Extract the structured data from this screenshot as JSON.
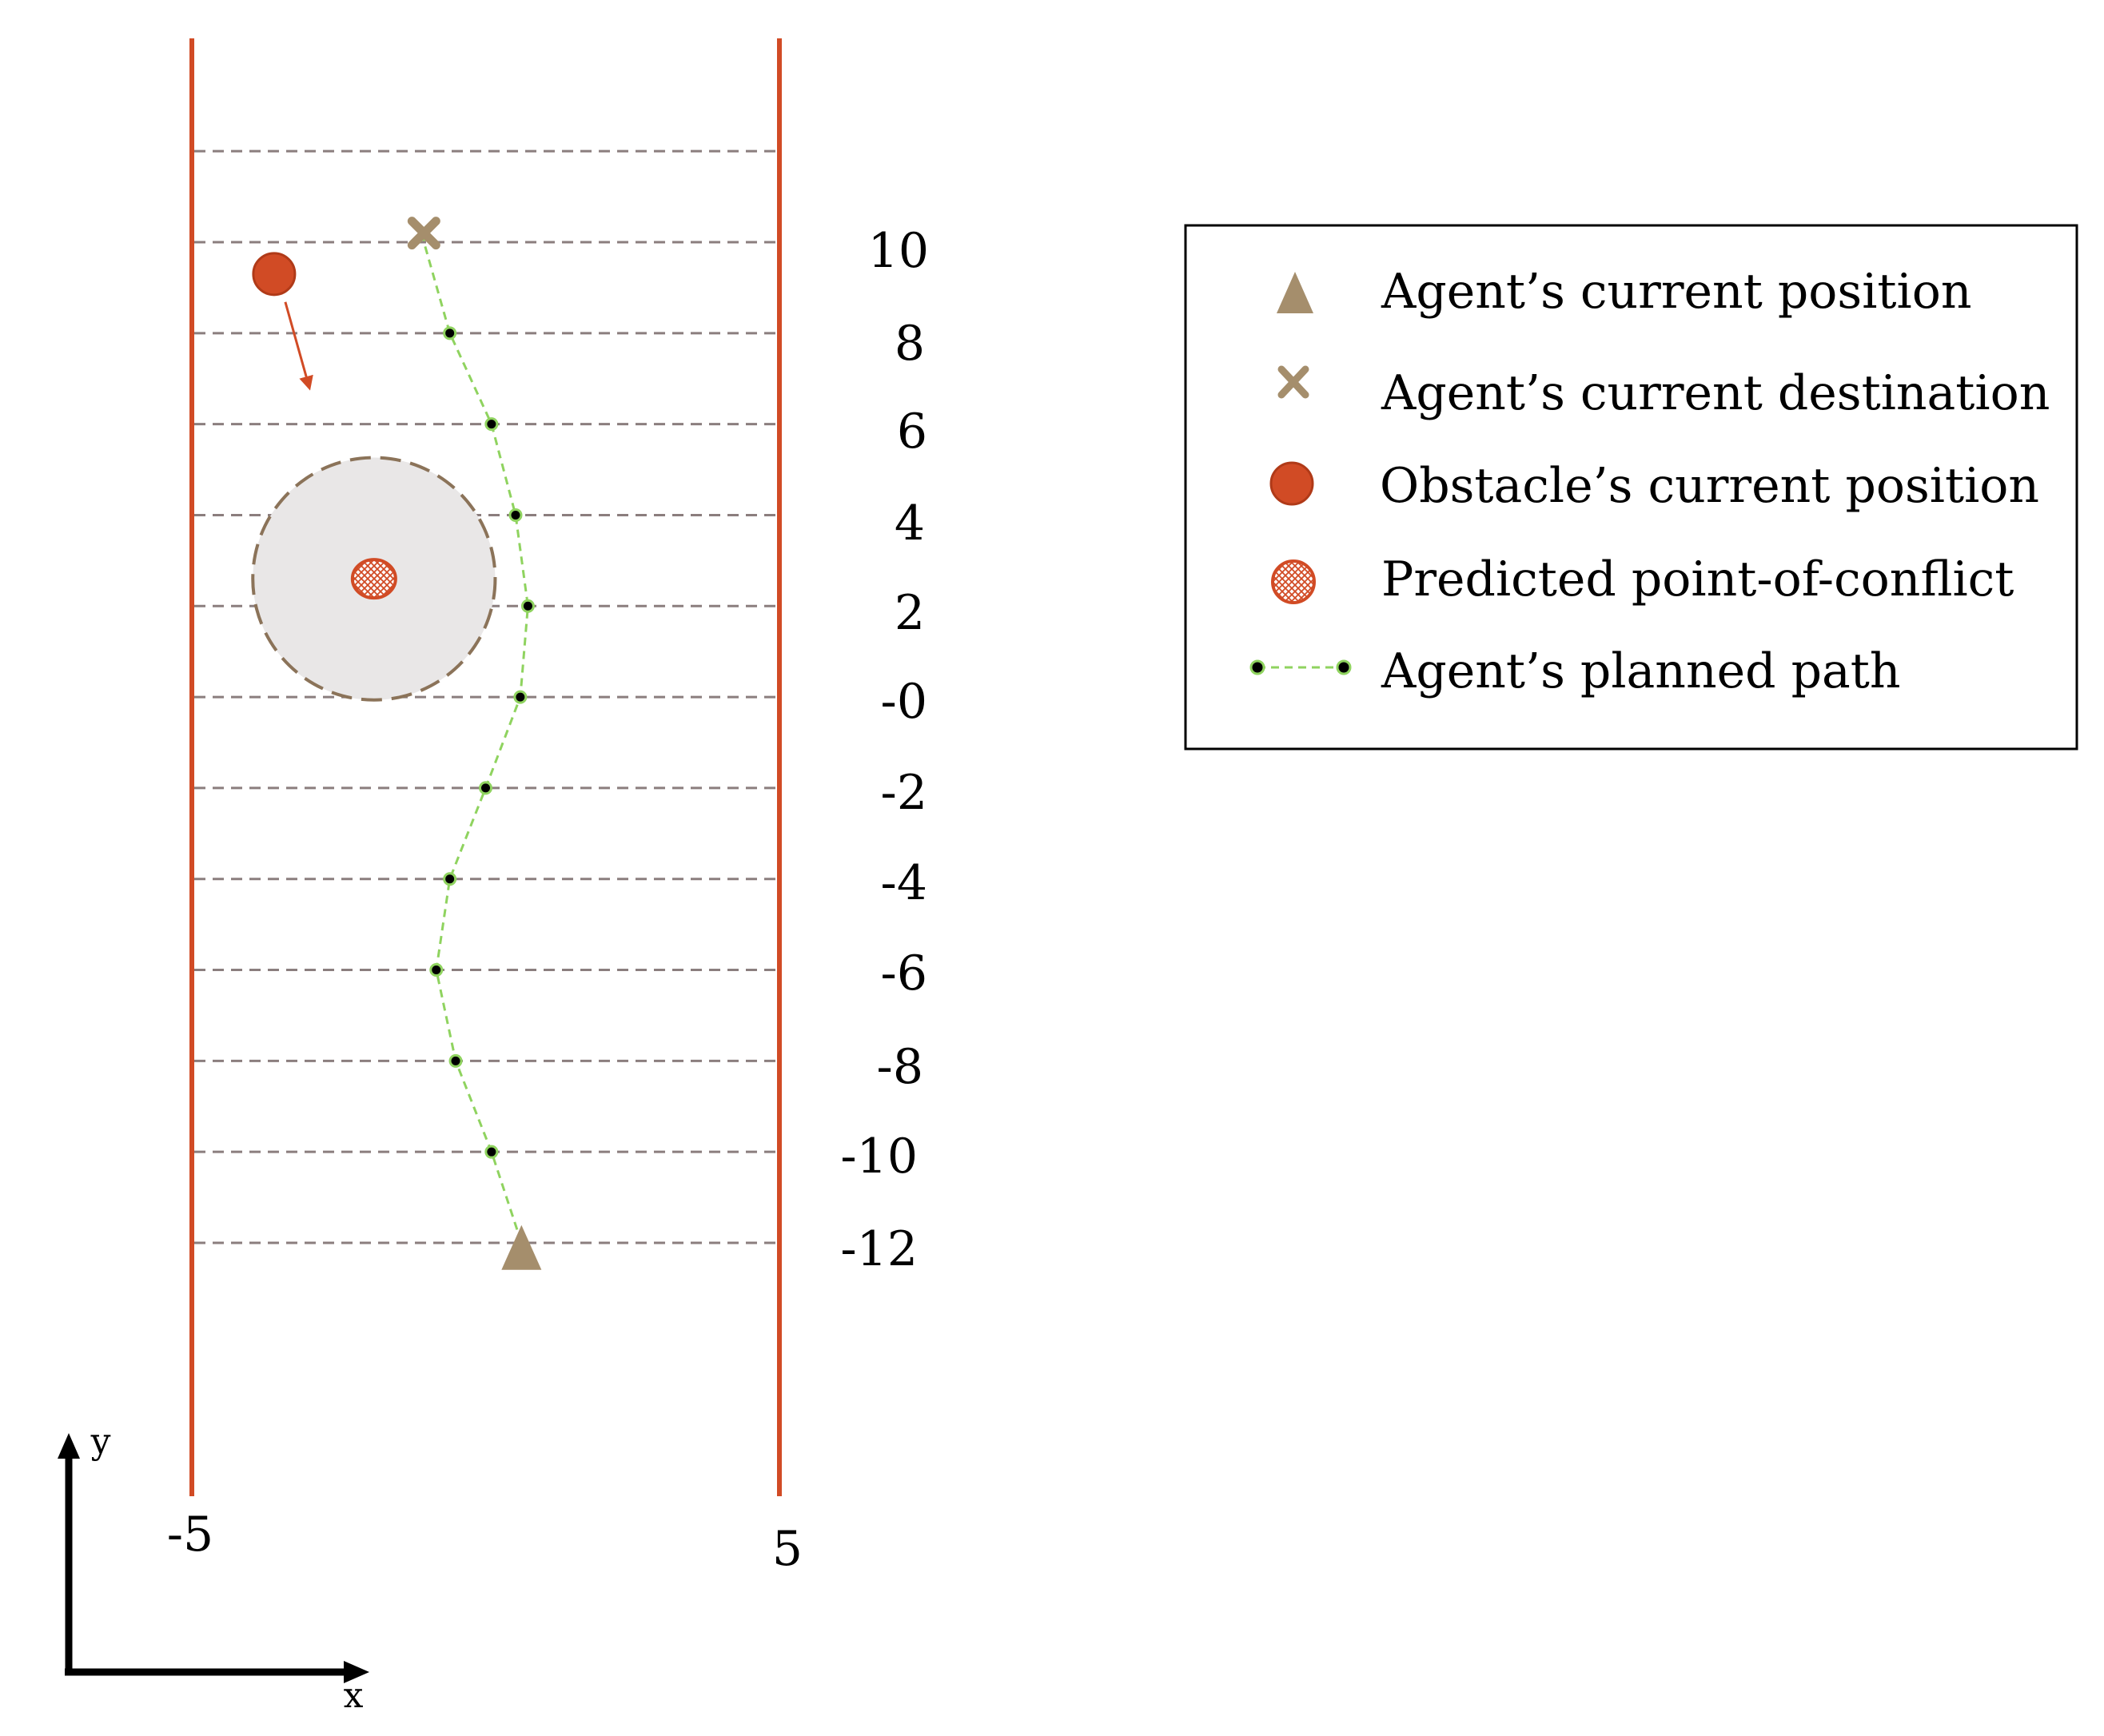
{
  "diagram": {
    "walls": {
      "left_label": "-5",
      "right_label": "5",
      "color": "#d14b25"
    },
    "row_labels": [
      "10",
      "8",
      "6",
      "4",
      "2",
      "-0",
      "-2",
      "-4",
      "-6",
      "-8",
      "-10",
      "-12"
    ],
    "row_line_color": "#8b7e7e",
    "path": {
      "x": [
        -1.05,
        -0.61,
        0.1,
        0.51,
        0.72,
        0.59,
        0.0,
        -0.61,
        -0.84,
        -0.51,
        0.1,
        0.61
      ],
      "y": [
        10,
        8,
        6,
        4,
        2,
        0,
        -2,
        -4,
        -6,
        -8,
        -10,
        -12
      ],
      "color": "#8fd35f"
    },
    "agent": {
      "x": 0.61,
      "y": -12.1,
      "color": "#a58e6c"
    },
    "destination": {
      "x": -1.05,
      "y": 10.2,
      "color": "#a58e6c"
    },
    "obstacle": {
      "x": -3.6,
      "y": 9.3,
      "color": "#d14b25",
      "arrow_to": {
        "x": -3.0,
        "y": 6.8
      }
    },
    "conflict": {
      "x": -1.9,
      "y": 2.6,
      "safety_radius": 3.2,
      "zone_color": "#e9e7e7",
      "zone_border": "#8b7359"
    },
    "axes": {
      "x_label": "x",
      "y_label": "y"
    }
  },
  "legend": {
    "items": [
      {
        "key": "agent",
        "label": "Agent’s current position"
      },
      {
        "key": "destination",
        "label": "Agent’s current destination"
      },
      {
        "key": "obstacle",
        "label": "Obstacle’s current position"
      },
      {
        "key": "conflict",
        "label": "Predicted point-of-conflict"
      },
      {
        "key": "path",
        "label": "Agent’s planned path"
      }
    ]
  }
}
